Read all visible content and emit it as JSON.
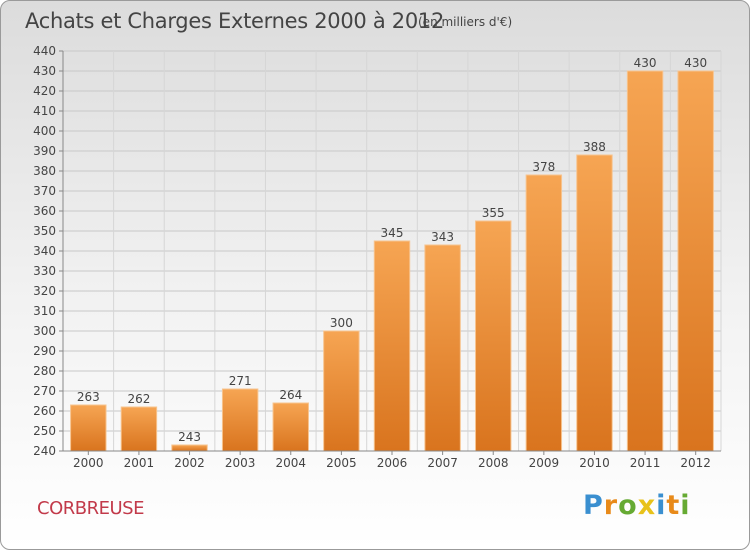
{
  "header": {
    "title": "Achats et Charges Externes 2000 à 2012",
    "subtitle": "(en milliers d'€)"
  },
  "footer": {
    "location": "CORBREUSE",
    "brand_letters": [
      {
        "char": "P",
        "color": "#3a8fd0"
      },
      {
        "char": "r",
        "color": "#e88a1a"
      },
      {
        "char": "o",
        "color": "#66aa33"
      },
      {
        "char": "x",
        "color": "#e8c21a"
      },
      {
        "char": "i",
        "color": "#3a8fd0"
      },
      {
        "char": "t",
        "color": "#e88a1a"
      },
      {
        "char": "i",
        "color": "#66aa33"
      }
    ]
  },
  "chart_data": {
    "type": "bar",
    "categories": [
      "2000",
      "2001",
      "2002",
      "2003",
      "2004",
      "2005",
      "2006",
      "2007",
      "2008",
      "2009",
      "2010",
      "2011",
      "2012"
    ],
    "values": [
      263,
      262,
      243,
      271,
      264,
      300,
      345,
      343,
      355,
      378,
      388,
      430,
      430
    ],
    "ylim": [
      240,
      440
    ],
    "ytick_step": 10,
    "grid": true,
    "bar_color_top": "#f6a553",
    "bar_color_bottom": "#d9741e"
  }
}
